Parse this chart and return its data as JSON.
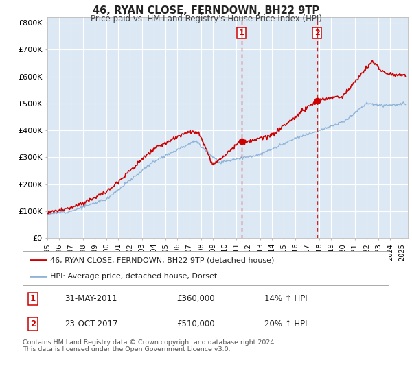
{
  "title": "46, RYAN CLOSE, FERNDOWN, BH22 9TP",
  "subtitle": "Price paid vs. HM Land Registry's House Price Index (HPI)",
  "background_color": "#ffffff",
  "plot_bg_color": "#dce9f5",
  "grid_color": "#ffffff",
  "line1_color": "#cc0000",
  "line2_color": "#90b4d8",
  "marker_color": "#cc0000",
  "vline_color": "#cc0000",
  "ylim_min": 0,
  "ylim_max": 820000,
  "yticks": [
    0,
    100000,
    200000,
    300000,
    400000,
    500000,
    600000,
    700000,
    800000
  ],
  "ytick_labels": [
    "£0",
    "£100K",
    "£200K",
    "£300K",
    "£400K",
    "£500K",
    "£600K",
    "£700K",
    "£800K"
  ],
  "xmin": 1995.0,
  "xmax": 2025.5,
  "purchase1_x": 2011.42,
  "purchase1_y": 360000,
  "purchase2_x": 2017.81,
  "purchase2_y": 510000,
  "legend_line1": "46, RYAN CLOSE, FERNDOWN, BH22 9TP (detached house)",
  "legend_line2": "HPI: Average price, detached house, Dorset",
  "purchase1_date": "31-MAY-2011",
  "purchase1_price": "£360,000",
  "purchase1_hpi": "14% ↑ HPI",
  "purchase2_date": "23-OCT-2017",
  "purchase2_price": "£510,000",
  "purchase2_hpi": "20% ↑ HPI",
  "footnote": "Contains HM Land Registry data © Crown copyright and database right 2024.\nThis data is licensed under the Open Government Licence v3.0.",
  "xticks": [
    1995,
    1996,
    1997,
    1998,
    1999,
    2000,
    2001,
    2002,
    2003,
    2004,
    2005,
    2006,
    2007,
    2008,
    2009,
    2010,
    2011,
    2012,
    2013,
    2014,
    2015,
    2016,
    2017,
    2018,
    2019,
    2020,
    2021,
    2022,
    2023,
    2024,
    2025
  ]
}
